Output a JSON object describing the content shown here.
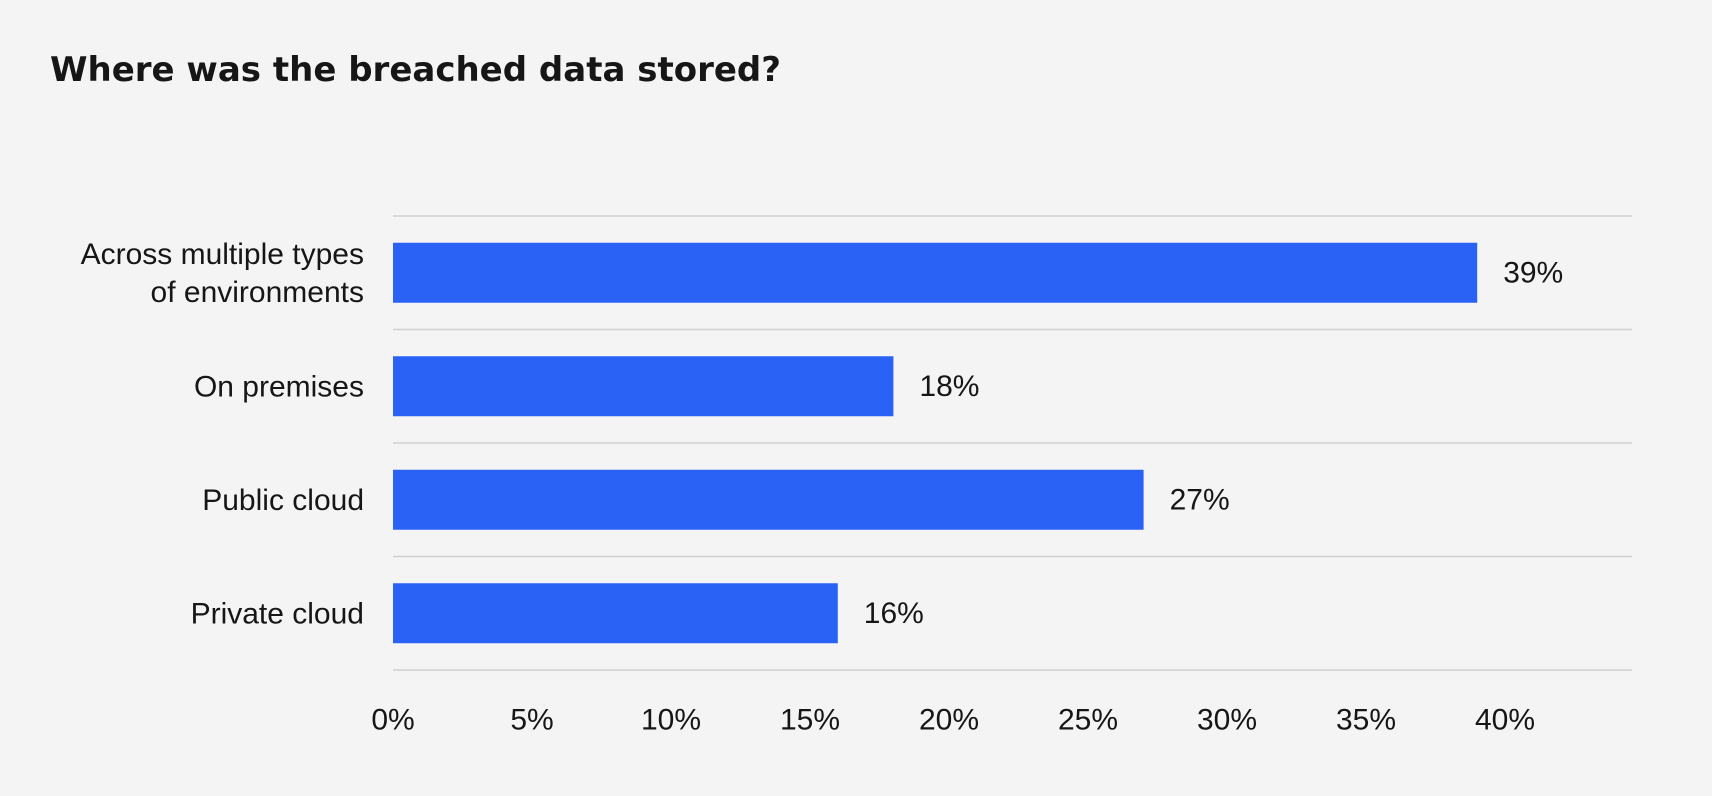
{
  "chart_data": {
    "type": "bar",
    "orientation": "horizontal",
    "title": "Where was the breached data stored?",
    "xlabel": "",
    "ylabel": "",
    "categories": [
      [
        "Across multiple types",
        "of environments"
      ],
      [
        "On premises"
      ],
      [
        "Public cloud"
      ],
      [
        "Private cloud"
      ]
    ],
    "values": [
      39,
      18,
      27,
      16
    ],
    "value_labels": [
      "39%",
      "18%",
      "27%",
      "16%"
    ],
    "xlim": [
      0,
      40
    ],
    "x_ticks": [
      0,
      5,
      10,
      15,
      20,
      25,
      30,
      35,
      40
    ],
    "x_tick_labels": [
      "0%",
      "5%",
      "10%",
      "15%",
      "20%",
      "25%",
      "30%",
      "35%",
      "40%"
    ],
    "bar_color": "#2962f5",
    "grid": "horizontal separators",
    "legend": "none"
  }
}
